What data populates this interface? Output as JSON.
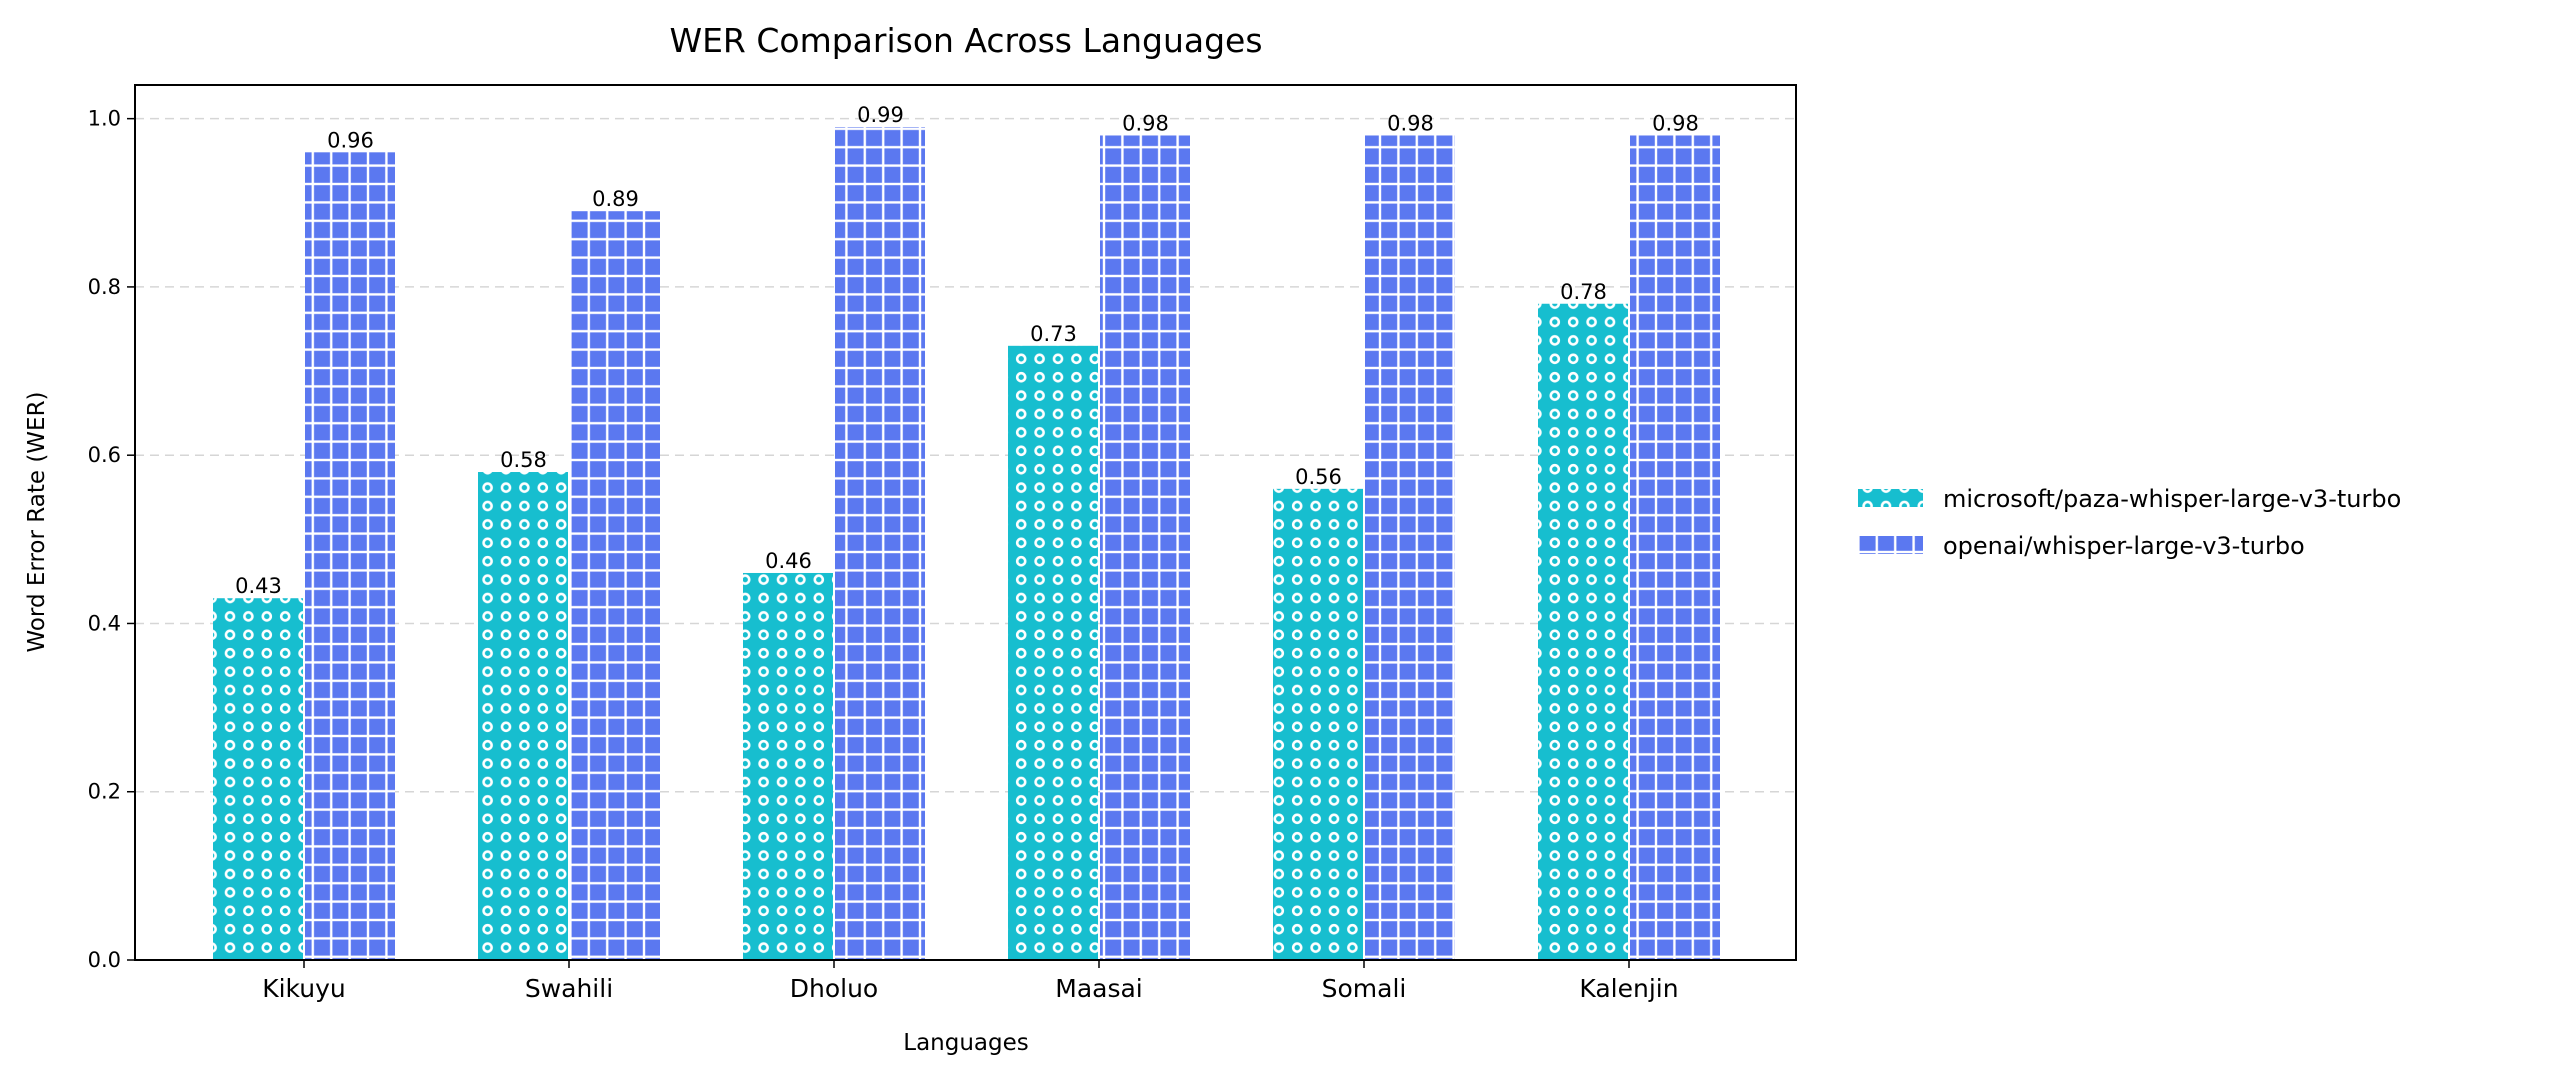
{
  "chart_data": {
    "type": "bar",
    "title": "WER Comparison Across Languages",
    "xlabel": "Languages",
    "ylabel": "Word Error Rate (WER)",
    "categories": [
      "Kikuyu",
      "Swahili",
      "Dholuo",
      "Maasai",
      "Somali",
      "Kalenjin"
    ],
    "series": [
      {
        "name": "microsoft/paza-whisper-large-v3-turbo",
        "values": [
          0.43,
          0.58,
          0.46,
          0.73,
          0.56,
          0.78
        ],
        "labels": [
          "0.43",
          "0.58",
          "0.46",
          "0.73",
          "0.56",
          "0.78"
        ],
        "color": "#17becf",
        "pattern": "circles"
      },
      {
        "name": "openai/whisper-large-v3-turbo",
        "values": [
          0.96,
          0.89,
          0.99,
          0.98,
          0.98,
          0.98
        ],
        "labels": [
          "0.96",
          "0.89",
          "0.99",
          "0.98",
          "0.98",
          "0.98"
        ],
        "color": "#5b78f0",
        "pattern": "grid"
      }
    ],
    "ylim": [
      0,
      1.04
    ],
    "yticks": [
      "0.0",
      "0.2",
      "0.4",
      "0.6",
      "0.8",
      "1.0"
    ],
    "grid": "y-dashed",
    "legend": "right"
  }
}
